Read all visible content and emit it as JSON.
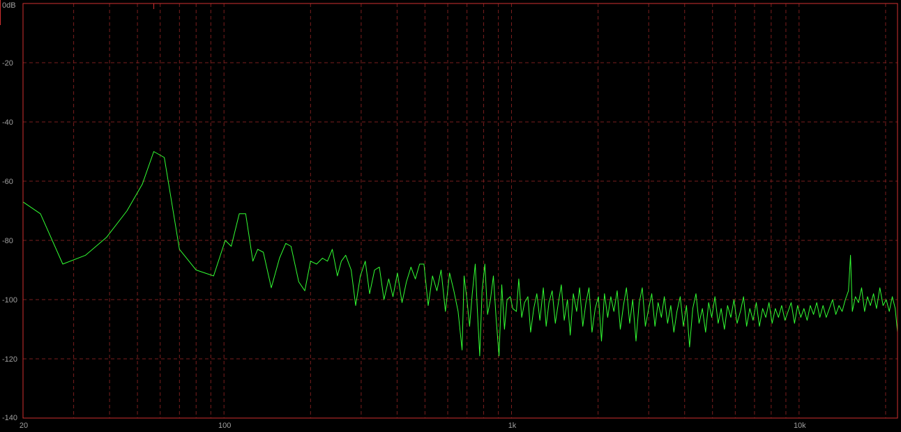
{
  "chart_data": {
    "type": "line",
    "x_scale": "log",
    "xlim": [
      20,
      22000
    ],
    "ylim": [
      -140,
      0
    ],
    "grid": true,
    "y_unit": "dB",
    "y_ticks": [
      {
        "value": 0,
        "label": "0dB"
      },
      {
        "value": -20,
        "label": "-20"
      },
      {
        "value": -40,
        "label": "-40"
      },
      {
        "value": -60,
        "label": "-60"
      },
      {
        "value": -80,
        "label": "-80"
      },
      {
        "value": -100,
        "label": "-100"
      },
      {
        "value": -120,
        "label": "-120"
      },
      {
        "value": -140,
        "label": "-140"
      }
    ],
    "x_ticks": [
      {
        "value": 20,
        "label": "20"
      },
      {
        "value": 100,
        "label": "100"
      },
      {
        "value": 1000,
        "label": "1k"
      },
      {
        "value": 10000,
        "label": "10k"
      }
    ],
    "x_gridlines": [
      20,
      30,
      40,
      50,
      60,
      70,
      80,
      90,
      100,
      200,
      300,
      400,
      500,
      600,
      700,
      800,
      900,
      1000,
      2000,
      3000,
      4000,
      5000,
      6000,
      7000,
      8000,
      9000,
      10000,
      20000
    ],
    "y_gridlines": [
      -20,
      -40,
      -60,
      -80,
      -100,
      -120
    ],
    "colors": {
      "trace": "#33ff33",
      "grid": "#7a1e1e",
      "frame": "#d03030",
      "background": "#000000",
      "tick_text": "#a0a0a0"
    },
    "series": [
      {
        "color": "#33ff33",
        "points": [
          [
            20,
            -67
          ],
          [
            23,
            -71
          ],
          [
            27.5,
            -88
          ],
          [
            33,
            -85
          ],
          [
            39,
            -79
          ],
          [
            46,
            -70
          ],
          [
            52,
            -61
          ],
          [
            57,
            -50
          ],
          [
            62,
            -52
          ],
          [
            70,
            -83
          ],
          [
            80,
            -90
          ],
          [
            92,
            -92
          ],
          [
            101,
            -80
          ],
          [
            106,
            -82
          ],
          [
            113,
            -71
          ],
          [
            119,
            -71
          ],
          [
            126,
            -87
          ],
          [
            131,
            -83
          ],
          [
            137,
            -84
          ],
          [
            146,
            -96
          ],
          [
            156,
            -86
          ],
          [
            164,
            -81
          ],
          [
            171,
            -82
          ],
          [
            182,
            -94
          ],
          [
            191,
            -97
          ],
          [
            200,
            -87
          ],
          [
            210,
            -88
          ],
          [
            220,
            -86
          ],
          [
            229,
            -87
          ],
          [
            238,
            -83
          ],
          [
            248,
            -92
          ],
          [
            256,
            -87
          ],
          [
            265,
            -85
          ],
          [
            277,
            -90
          ],
          [
            287,
            -102
          ],
          [
            298,
            -92
          ],
          [
            310,
            -87
          ],
          [
            321,
            -98
          ],
          [
            334,
            -90
          ],
          [
            347,
            -89
          ],
          [
            360,
            -100
          ],
          [
            374,
            -93
          ],
          [
            387,
            -99
          ],
          [
            401,
            -91
          ],
          [
            416,
            -101
          ],
          [
            431,
            -94
          ],
          [
            447,
            -89
          ],
          [
            463,
            -93
          ],
          [
            479,
            -88
          ],
          [
            496,
            -88
          ],
          [
            513,
            -102
          ],
          [
            531,
            -92
          ],
          [
            550,
            -97
          ],
          [
            569,
            -90
          ],
          [
            589,
            -104
          ],
          [
            609,
            -91
          ],
          [
            630,
            -97
          ],
          [
            652,
            -104
          ],
          [
            673,
            -117
          ],
          [
            684,
            -92
          ],
          [
            700,
            -100
          ],
          [
            715,
            -109
          ],
          [
            730,
            -98
          ],
          [
            748,
            -88
          ],
          [
            760,
            -103
          ],
          [
            775,
            -119
          ],
          [
            790,
            -97
          ],
          [
            808,
            -88
          ],
          [
            825,
            -105
          ],
          [
            845,
            -100
          ],
          [
            865,
            -92
          ],
          [
            885,
            -107
          ],
          [
            905,
            -119
          ],
          [
            925,
            -95
          ],
          [
            945,
            -110
          ],
          [
            965,
            -100
          ],
          [
            990,
            -99
          ],
          [
            1010,
            -103
          ],
          [
            1040,
            -104
          ],
          [
            1060,
            -93
          ],
          [
            1085,
            -106
          ],
          [
            1110,
            -101
          ],
          [
            1140,
            -99
          ],
          [
            1165,
            -111
          ],
          [
            1195,
            -103
          ],
          [
            1225,
            -98
          ],
          [
            1255,
            -107
          ],
          [
            1290,
            -96
          ],
          [
            1320,
            -109
          ],
          [
            1350,
            -101
          ],
          [
            1385,
            -97
          ],
          [
            1420,
            -108
          ],
          [
            1455,
            -101
          ],
          [
            1490,
            -95
          ],
          [
            1525,
            -107
          ],
          [
            1565,
            -100
          ],
          [
            1600,
            -112
          ],
          [
            1640,
            -98
          ],
          [
            1685,
            -104
          ],
          [
            1725,
            -96
          ],
          [
            1770,
            -109
          ],
          [
            1815,
            -101
          ],
          [
            1860,
            -96
          ],
          [
            1905,
            -111
          ],
          [
            1955,
            -103
          ],
          [
            2005,
            -99
          ],
          [
            2055,
            -114
          ],
          [
            2105,
            -98
          ],
          [
            2160,
            -106
          ],
          [
            2215,
            -99
          ],
          [
            2270,
            -104
          ],
          [
            2330,
            -97
          ],
          [
            2390,
            -110
          ],
          [
            2450,
            -102
          ],
          [
            2510,
            -96
          ],
          [
            2575,
            -108
          ],
          [
            2640,
            -100
          ],
          [
            2710,
            -114
          ],
          [
            2780,
            -101
          ],
          [
            2850,
            -96
          ],
          [
            2920,
            -109
          ],
          [
            3000,
            -103
          ],
          [
            3075,
            -98
          ],
          [
            3155,
            -109
          ],
          [
            3235,
            -101
          ],
          [
            3320,
            -106
          ],
          [
            3400,
            -99
          ],
          [
            3490,
            -108
          ],
          [
            3580,
            -102
          ],
          [
            3670,
            -111
          ],
          [
            3760,
            -104
          ],
          [
            3860,
            -99
          ],
          [
            3960,
            -109
          ],
          [
            4060,
            -102
          ],
          [
            4160,
            -116
          ],
          [
            4270,
            -103
          ],
          [
            4380,
            -98
          ],
          [
            4490,
            -108
          ],
          [
            4610,
            -103
          ],
          [
            4730,
            -111
          ],
          [
            4850,
            -101
          ],
          [
            4970,
            -106
          ],
          [
            5100,
            -99
          ],
          [
            5230,
            -108
          ],
          [
            5360,
            -103
          ],
          [
            5500,
            -110
          ],
          [
            5640,
            -102
          ],
          [
            5790,
            -106
          ],
          [
            5940,
            -100
          ],
          [
            6090,
            -108
          ],
          [
            6250,
            -104
          ],
          [
            6410,
            -99
          ],
          [
            6570,
            -109
          ],
          [
            6740,
            -103
          ],
          [
            6920,
            -107
          ],
          [
            7100,
            -101
          ],
          [
            7280,
            -109
          ],
          [
            7470,
            -103
          ],
          [
            7660,
            -106
          ],
          [
            7860,
            -101
          ],
          [
            8060,
            -108
          ],
          [
            8270,
            -103
          ],
          [
            8480,
            -106
          ],
          [
            8700,
            -102
          ],
          [
            8930,
            -107
          ],
          [
            9160,
            -104
          ],
          [
            9390,
            -101
          ],
          [
            9640,
            -108
          ],
          [
            9880,
            -102
          ],
          [
            10140,
            -106
          ],
          [
            10400,
            -103
          ],
          [
            10670,
            -107
          ],
          [
            10940,
            -102
          ],
          [
            11230,
            -105
          ],
          [
            11520,
            -101
          ],
          [
            11810,
            -106
          ],
          [
            12120,
            -102
          ],
          [
            12430,
            -106
          ],
          [
            12750,
            -103
          ],
          [
            13080,
            -100
          ],
          [
            13420,
            -105
          ],
          [
            13770,
            -102
          ],
          [
            14120,
            -104
          ],
          [
            14490,
            -100
          ],
          [
            14860,
            -97
          ],
          [
            15100,
            -85
          ],
          [
            15320,
            -104
          ],
          [
            15700,
            -99
          ],
          [
            16100,
            -101
          ],
          [
            16500,
            -96
          ],
          [
            16900,
            -104
          ],
          [
            17300,
            -99
          ],
          [
            17700,
            -102
          ],
          [
            18150,
            -98
          ],
          [
            18600,
            -103
          ],
          [
            19100,
            -96
          ],
          [
            19600,
            -102
          ],
          [
            20100,
            -100
          ],
          [
            20600,
            -104
          ],
          [
            21100,
            -99
          ],
          [
            21600,
            -103
          ],
          [
            22000,
            -111
          ]
        ]
      }
    ]
  }
}
